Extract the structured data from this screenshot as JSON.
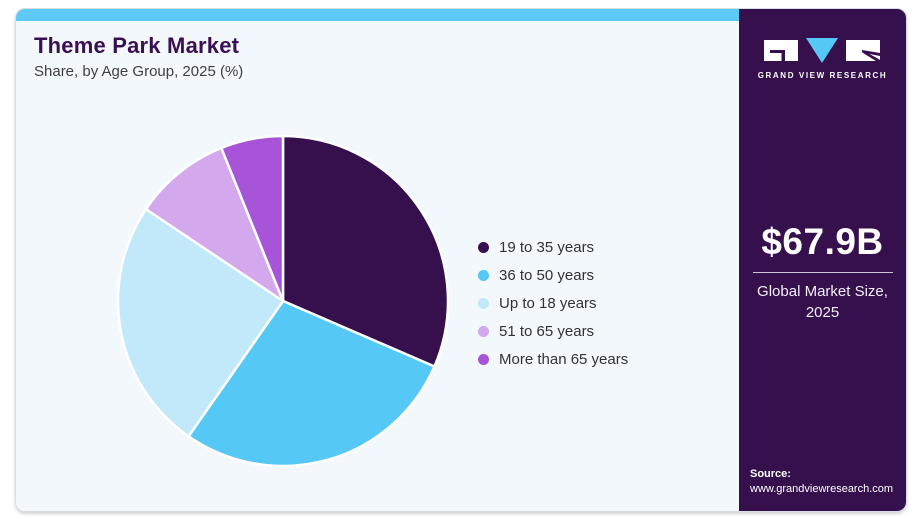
{
  "header": {
    "title": "Theme Park Market",
    "subtitle": "Share, by Age Group, 2025 (%)"
  },
  "chart_data": {
    "type": "pie",
    "title": "Theme Park Market Share, by Age Group, 2025 (%)",
    "categories": [
      "19 to 35 years",
      "36 to 50 years",
      "Up to 18 years",
      "51 to 65 years",
      "More than 65 years"
    ],
    "values": [
      31.5,
      28.2,
      24.7,
      9.5,
      6.1
    ],
    "colors": [
      "#36104d",
      "#56c8f5",
      "#c2e9f9",
      "#d3a8ec",
      "#a854d8"
    ],
    "unit": "%",
    "start_angle_deg": 0,
    "direction": "clockwise",
    "legend_position": "right",
    "data_labels": false
  },
  "sidebar": {
    "logo_text": "GRAND VIEW RESEARCH",
    "market_size_value": "$67.9B",
    "market_size_label_line1": "Global Market Size,",
    "market_size_label_line2": "2025",
    "source_label": "Source:",
    "source_url": "www.grandviewresearch.com"
  },
  "theme": {
    "top_bar_color": "#5ec9f4",
    "card_background": "#f2f8fc",
    "sidebar_background": "#36104d",
    "title_color": "#3a1053",
    "logo_accent": "#56c8f5"
  }
}
